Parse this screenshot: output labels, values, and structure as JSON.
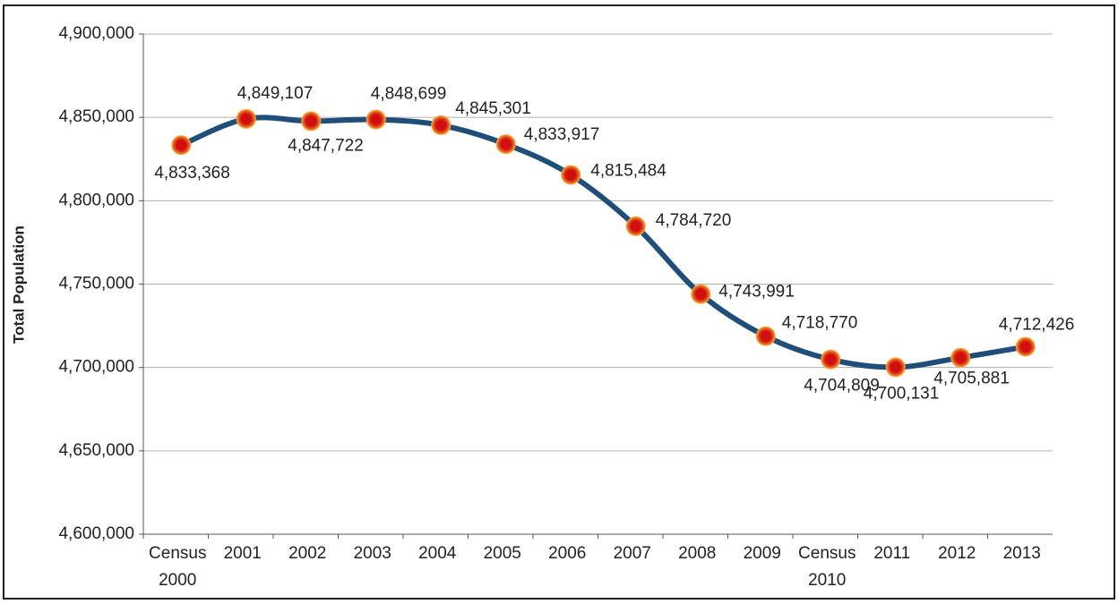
{
  "chart_data": {
    "type": "line",
    "y_label": "Total Population",
    "categories": [
      "Census 2000",
      "2001",
      "2002",
      "2003",
      "2004",
      "2005",
      "2006",
      "2007",
      "2008",
      "2009",
      "Census 2010",
      "2011",
      "2012",
      "2013"
    ],
    "series": [
      {
        "name": "Total Population",
        "color": "#1f4e79",
        "values": [
          4833368,
          4849107,
          4847722,
          4848699,
          4845301,
          4833917,
          4815484,
          4784720,
          4743991,
          4718770,
          4704809,
          4700131,
          4705881,
          4712426
        ],
        "value_labels": [
          "4,833,368",
          "4,849,107",
          "4,847,722",
          "4,848,699",
          "4,845,301",
          "4,833,917",
          "4,815,484",
          "4,784,720",
          "4,743,991",
          "4,718,770",
          "4,704,809",
          "4,700,131",
          "4,705,881",
          "4,712,426"
        ]
      }
    ],
    "ylim": [
      4600000,
      4900000
    ],
    "yticks": [
      {
        "value": 4600000,
        "label": "4,600,000"
      },
      {
        "value": 4650000,
        "label": "4,650,000"
      },
      {
        "value": 4700000,
        "label": "4,700,000"
      },
      {
        "value": 4750000,
        "label": "4,750,000"
      },
      {
        "value": 4800000,
        "label": "4,800,000"
      },
      {
        "value": 4850000,
        "label": "4,850,000"
      },
      {
        "value": 4900000,
        "label": "4,900,000"
      }
    ],
    "grid": true
  }
}
